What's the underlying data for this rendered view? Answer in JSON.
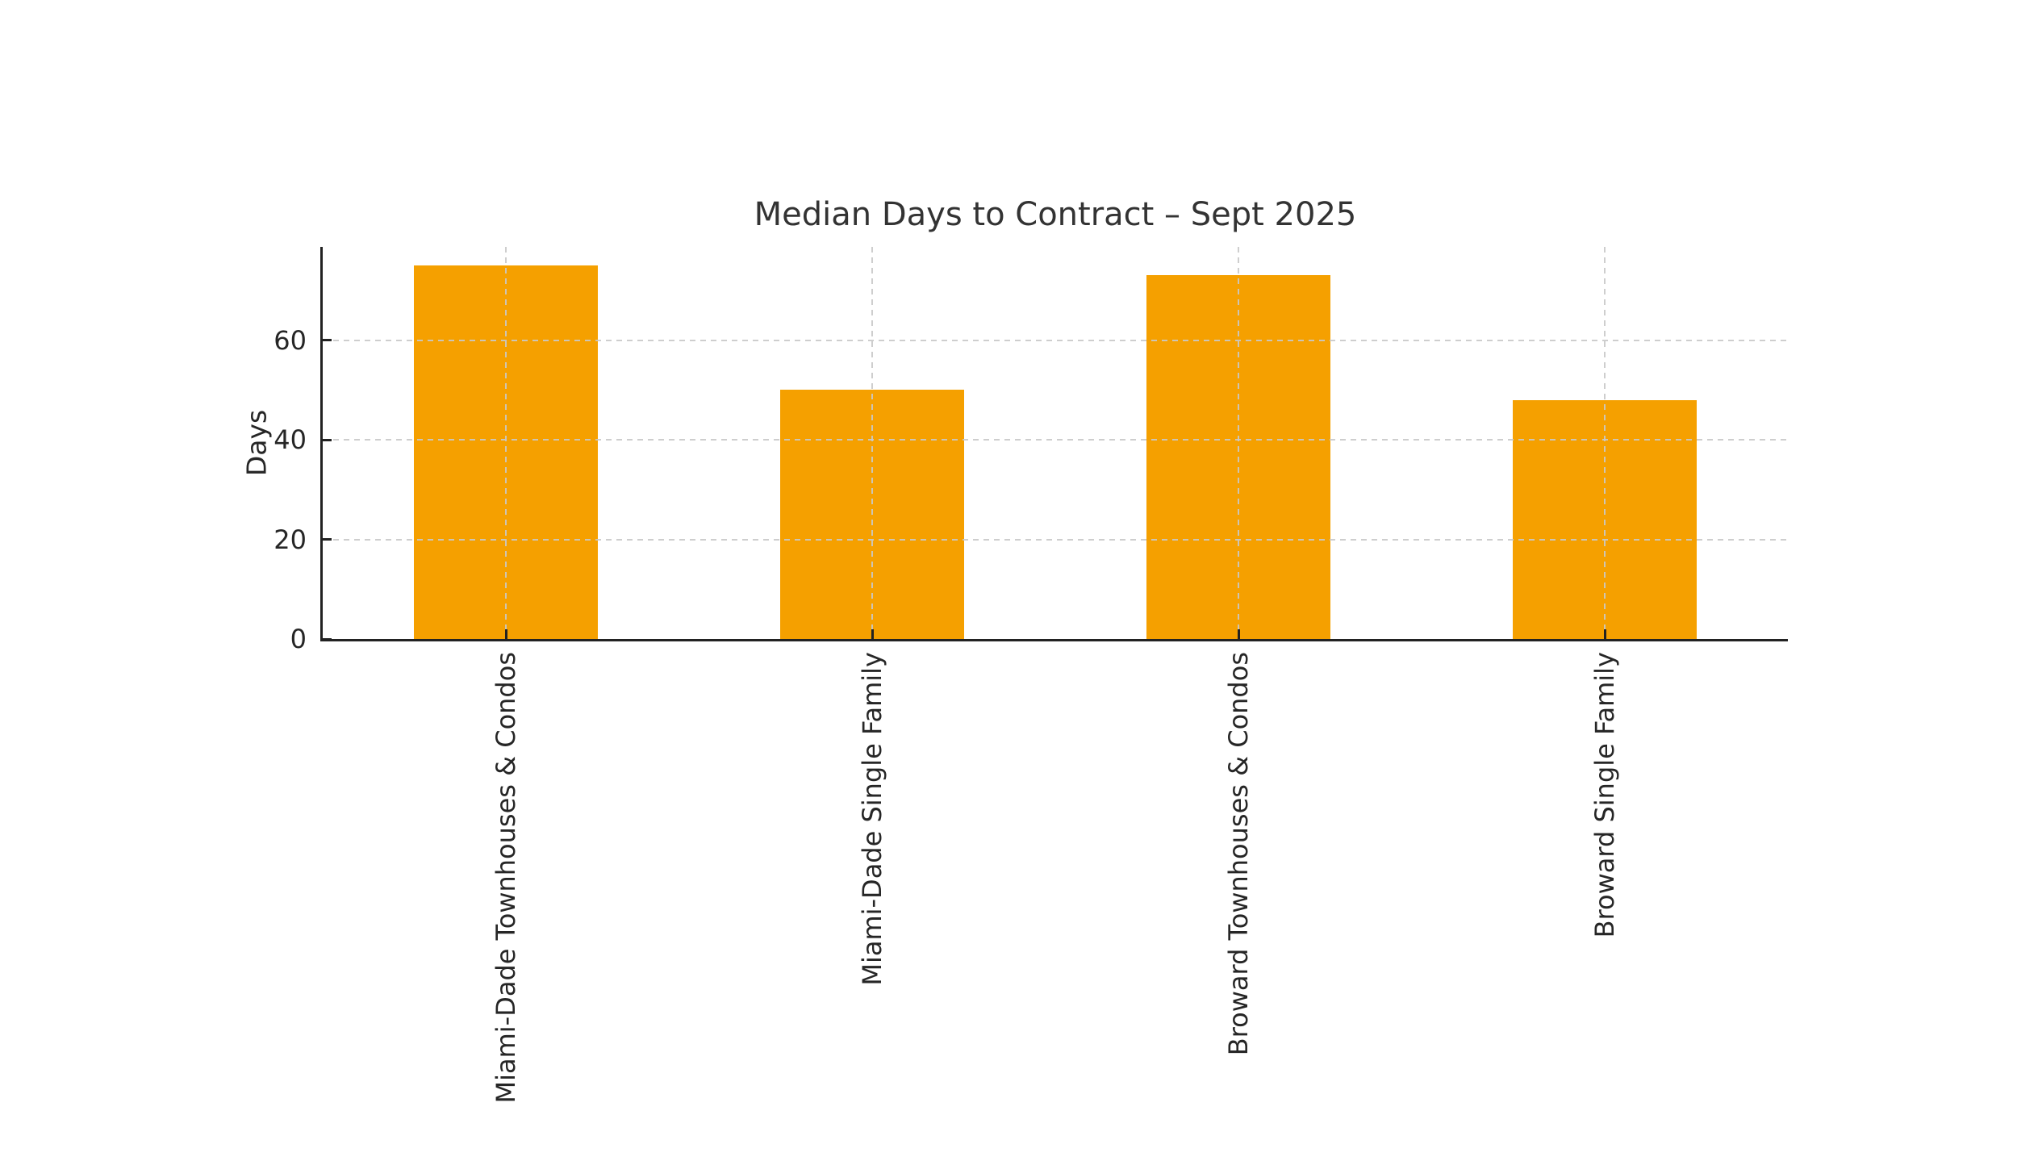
{
  "chart_data": {
    "type": "bar",
    "title": "Median Days to Contract – Sept 2025",
    "ylabel": "Days",
    "xlabel": "",
    "categories": [
      "Miami-Dade Townhouses & Condos",
      "Miami-Dade Single Family",
      "Broward Townhouses & Condos",
      "Broward Single Family"
    ],
    "values": [
      75,
      50,
      73,
      48
    ],
    "yticks": [
      0,
      20,
      40,
      60
    ],
    "ylim": [
      0,
      78.75
    ],
    "grid": {
      "style": "dashed",
      "horizontal": true,
      "vertical": true,
      "above_bars": true,
      "color": "#cccccc"
    },
    "legend": "none",
    "bar_color": "#F5A000",
    "axis_color": "#222222",
    "text_color": "#2b2b2b",
    "background": "#ffffff"
  }
}
